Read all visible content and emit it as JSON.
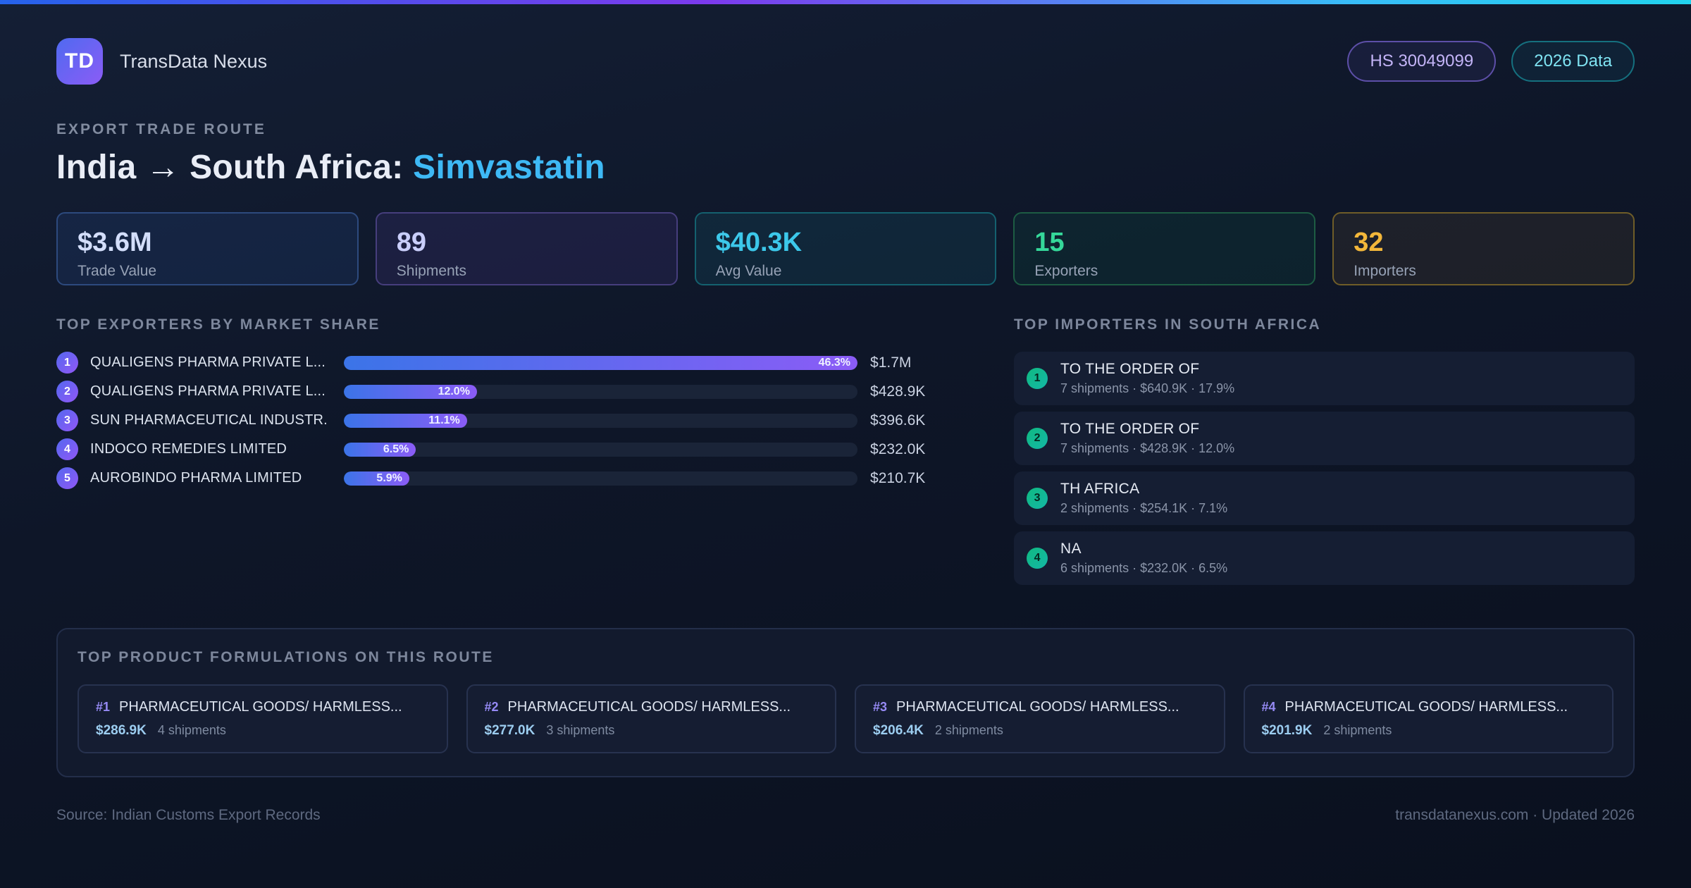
{
  "header": {
    "logo": "TD",
    "app_name": "TransData Nexus",
    "badges": [
      {
        "label": "HS 30049099",
        "accent": "#c3b4f7"
      },
      {
        "label": "2026 Data",
        "accent": "#7fe3f2"
      }
    ]
  },
  "hero": {
    "eyebrow": "EXPORT TRADE ROUTE",
    "title_prefix": "India → South Africa: ",
    "title_highlight": "Simvastatin",
    "highlight_color": "#3eb9f5"
  },
  "stats": [
    {
      "value": "$3.6M",
      "label": "Trade Value",
      "accent": "#d3defb",
      "border": "#2d4a7e",
      "bg": "rgba(59,130,246,0.10)"
    },
    {
      "value": "89",
      "label": "Shipments",
      "accent": "#c9cefa",
      "border": "#463e7d",
      "bg": "rgba(139,92,246,0.10)"
    },
    {
      "value": "$40.3K",
      "label": "Avg Value",
      "accent": "#3cc8ea",
      "border": "#14616f",
      "bg": "rgba(34,211,238,0.08)"
    },
    {
      "value": "15",
      "label": "Exporters",
      "accent": "#35d89a",
      "border": "#1d5c43",
      "bg": "rgba(16,185,129,0.08)"
    },
    {
      "value": "32",
      "label": "Importers",
      "accent": "#f3b73a",
      "border": "#6f5d28",
      "bg": "rgba(245,184,64,0.07)"
    }
  ],
  "exporters": {
    "heading": "TOP EXPORTERS BY MARKET SHARE",
    "rows": [
      {
        "rank": "1",
        "name": "QUALIGENS PHARMA PRIVATE L...",
        "share_label": "46.3%",
        "share_pct": 46.3,
        "value": "$1.7M"
      },
      {
        "rank": "2",
        "name": "QUALIGENS PHARMA PRIVATE L...",
        "share_label": "12.0%",
        "share_pct": 12.0,
        "value": "$428.9K"
      },
      {
        "rank": "3",
        "name": "SUN PHARMACEUTICAL INDUSTR...",
        "share_label": "11.1%",
        "share_pct": 11.1,
        "value": "$396.6K"
      },
      {
        "rank": "4",
        "name": "INDOCO REMEDIES LIMITED",
        "share_label": "6.5%",
        "share_pct": 6.5,
        "value": "$232.0K"
      },
      {
        "rank": "5",
        "name": "AUROBINDO PHARMA LIMITED",
        "share_label": "5.9%",
        "share_pct": 5.9,
        "value": "$210.7K"
      }
    ]
  },
  "importers": {
    "heading": "TOP IMPORTERS IN SOUTH AFRICA",
    "rows": [
      {
        "rank": "1",
        "name": "TO THE ORDER OF",
        "detail": "7 shipments · $640.9K · 17.9%"
      },
      {
        "rank": "2",
        "name": "TO THE ORDER OF",
        "detail": "7 shipments · $428.9K · 12.0%"
      },
      {
        "rank": "3",
        "name": "TH AFRICA",
        "detail": "2 shipments · $254.1K · 7.1%"
      },
      {
        "rank": "4",
        "name": "NA",
        "detail": "6 shipments · $232.0K · 6.5%"
      }
    ]
  },
  "formulations": {
    "heading": "TOP PRODUCT FORMULATIONS ON THIS ROUTE",
    "cards": [
      {
        "rank": "#1",
        "name": "PHARMACEUTICAL GOODS/ HARMLESS...",
        "value": "$286.9K",
        "shipments": "4 shipments"
      },
      {
        "rank": "#2",
        "name": "PHARMACEUTICAL GOODS/ HARMLESS...",
        "value": "$277.0K",
        "shipments": "3 shipments"
      },
      {
        "rank": "#3",
        "name": "PHARMACEUTICAL GOODS/ HARMLESS...",
        "value": "$206.4K",
        "shipments": "2 shipments"
      },
      {
        "rank": "#4",
        "name": "PHARMACEUTICAL GOODS/ HARMLESS...",
        "value": "$201.9K",
        "shipments": "2 shipments"
      }
    ]
  },
  "footer": {
    "source": "Source: Indian Customs Export Records",
    "site": "transdatanexus.com · Updated 2026"
  }
}
